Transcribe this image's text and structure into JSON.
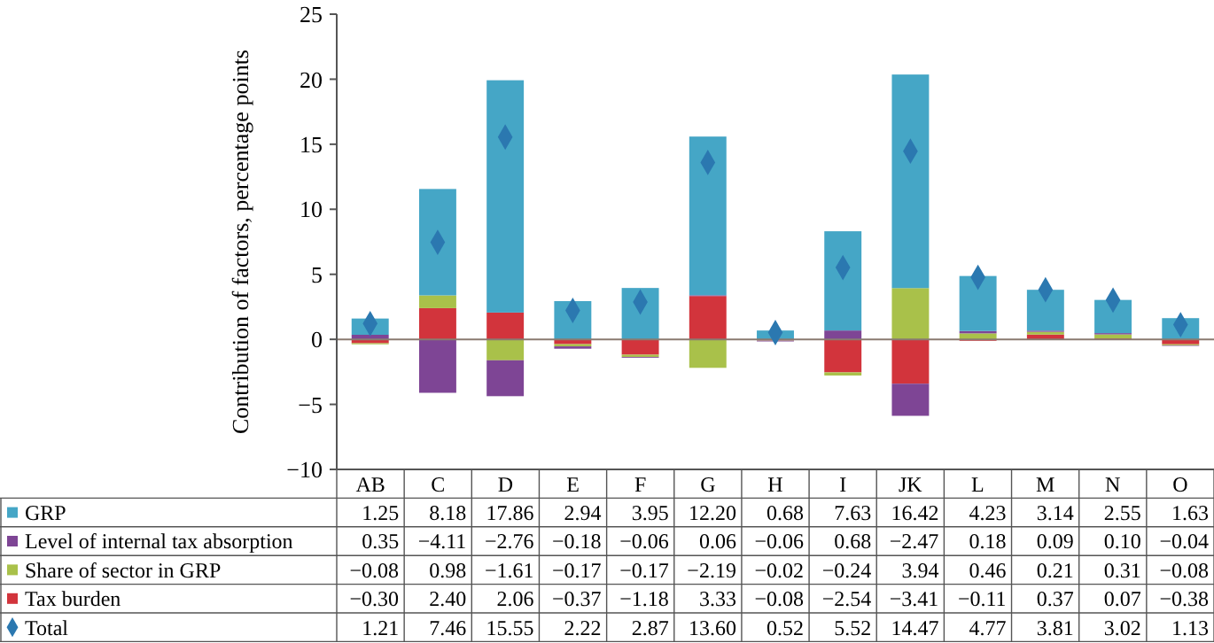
{
  "chart_data": {
    "type": "bar",
    "stacked": true,
    "ylabel": "Contribution of factors, percentage points",
    "categories": [
      "AB",
      "C",
      "D",
      "E",
      "F",
      "G",
      "H",
      "I",
      "JK",
      "L",
      "M",
      "N",
      "O"
    ],
    "ylim": [
      -10,
      25
    ],
    "yticks": [
      -10,
      -5,
      0,
      5,
      10,
      15,
      20,
      25
    ],
    "legend": "bottom",
    "series": [
      {
        "name": "Tax burden",
        "color": "#d2343c",
        "values": [
          -0.3,
          2.4,
          2.06,
          -0.37,
          -1.18,
          3.33,
          -0.08,
          -2.54,
          -3.41,
          -0.11,
          0.37,
          0.07,
          -0.38
        ],
        "value_labels": [
          "−0.30",
          "2.40",
          "2.06",
          "−0.37",
          "−1.18",
          "3.33",
          "−0.08",
          "−2.54",
          "−3.41",
          "−0.11",
          "0.37",
          "0.07",
          "−0.38"
        ]
      },
      {
        "name": "Share of sector in GRP",
        "color": "#a9c14a",
        "values": [
          -0.08,
          0.98,
          -1.61,
          -0.17,
          -0.17,
          -2.19,
          -0.02,
          -0.24,
          3.94,
          0.46,
          0.21,
          0.31,
          -0.08
        ],
        "value_labels": [
          "−0.08",
          "0.98",
          "−1.61",
          "−0.17",
          "−0.17",
          "−2.19",
          "−0.02",
          "−0.24",
          "3.94",
          "0.46",
          "0.21",
          "0.31",
          "−0.08"
        ]
      },
      {
        "name": "Level of internal tax absorption",
        "color": "#7e4595",
        "values": [
          0.35,
          -4.11,
          -2.76,
          -0.18,
          -0.06,
          0.06,
          -0.06,
          0.68,
          -2.47,
          0.18,
          0.09,
          0.1,
          -0.04
        ],
        "value_labels": [
          "0.35",
          "−4.11",
          "−2.76",
          "−0.18",
          "−0.06",
          "0.06",
          "−0.06",
          "0.68",
          "−2.47",
          "0.18",
          "0.09",
          "0.10",
          "−0.04"
        ]
      },
      {
        "name": "GRP",
        "color": "#45a6c6",
        "values": [
          1.25,
          8.18,
          17.86,
          2.94,
          3.95,
          12.2,
          0.68,
          7.63,
          16.42,
          4.23,
          3.14,
          2.55,
          1.63
        ],
        "value_labels": [
          "1.25",
          "8.18",
          "17.86",
          "2.94",
          "3.95",
          "12.20",
          "0.68",
          "7.63",
          "16.42",
          "4.23",
          "3.14",
          "2.55",
          "1.63"
        ]
      },
      {
        "name": "Total",
        "type": "scatter",
        "marker": "diamond",
        "color": "#2b78b0",
        "values": [
          1.21,
          7.46,
          15.55,
          2.22,
          2.87,
          13.6,
          0.52,
          5.52,
          14.47,
          4.77,
          3.81,
          3.02,
          1.13
        ],
        "value_labels": [
          "1.21",
          "7.46",
          "15.55",
          "2.22",
          "2.87",
          "13.60",
          "0.52",
          "5.52",
          "14.47",
          "4.77",
          "3.81",
          "3.02",
          "1.13"
        ]
      }
    ]
  }
}
